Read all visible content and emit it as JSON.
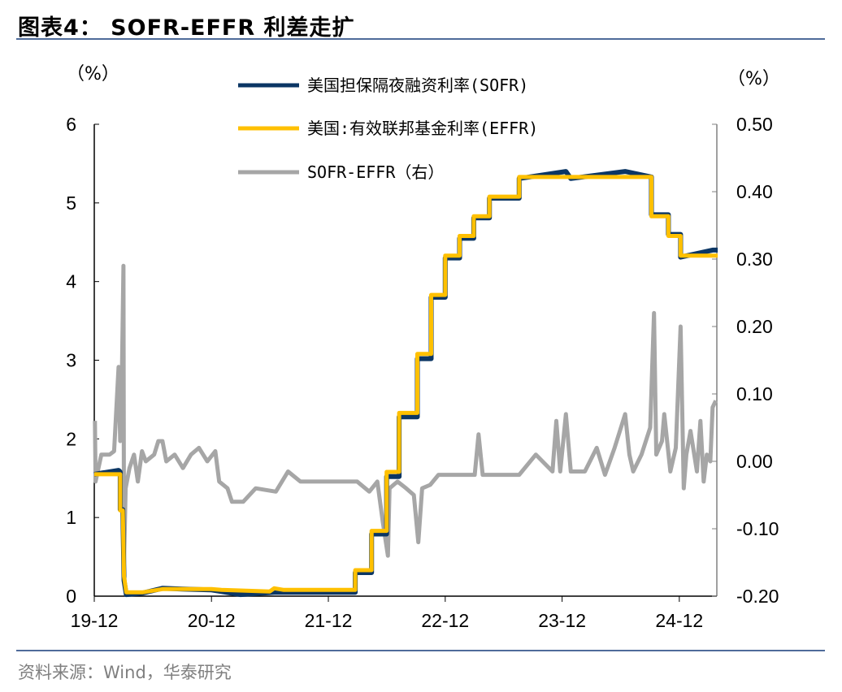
{
  "title": "图表4： SOFR-EFFR 利差走扩",
  "source": "资料来源：Wind，华泰研究",
  "colors": {
    "sofr": "#0b3664",
    "effr": "#ffc000",
    "spread": "#a6a6a6",
    "rule": "#4f6b9a",
    "axis_right": "#808080"
  },
  "chart_data": {
    "type": "line",
    "left_unit": "（%）",
    "right_unit": "（%）",
    "legend_position": "top-center",
    "grid": false,
    "left_axis": {
      "range": [
        0,
        6
      ],
      "ticks": [
        "0",
        "1",
        "2",
        "3",
        "4",
        "5",
        "6"
      ]
    },
    "right_axis": {
      "range": [
        -0.2,
        0.5
      ],
      "ticks": [
        "-0.20",
        "-0.10",
        "0.00",
        "0.10",
        "0.20",
        "0.30",
        "0.40",
        "0.50"
      ]
    },
    "x_axis": {
      "range": [
        "2019-12-01",
        "2025-03-31"
      ],
      "ticks": [
        {
          "label": "19-12",
          "date": "2019-12-01"
        },
        {
          "label": "20-12",
          "date": "2020-12-01"
        },
        {
          "label": "21-12",
          "date": "2021-12-01"
        },
        {
          "label": "22-12",
          "date": "2022-12-01"
        },
        {
          "label": "23-12",
          "date": "2023-12-01"
        },
        {
          "label": "24-12",
          "date": "2024-12-01"
        }
      ]
    },
    "series": [
      {
        "name": "美国担保隔夜融资利率(SOFR)",
        "axis": "left",
        "points": [
          [
            "2019-12-01",
            1.55
          ],
          [
            "2020-02-15",
            1.6
          ],
          [
            "2020-02-20",
            1.58
          ],
          [
            "2020-02-20",
            1.1
          ],
          [
            "2020-02-28",
            1.1
          ],
          [
            "2020-03-03",
            0.2
          ],
          [
            "2020-03-10",
            0.02
          ],
          [
            "2020-05-01",
            0.04
          ],
          [
            "2020-07-01",
            0.1
          ],
          [
            "2020-09-01",
            0.09
          ],
          [
            "2020-12-01",
            0.08
          ],
          [
            "2021-03-01",
            0.02
          ],
          [
            "2021-06-15",
            0.05
          ],
          [
            "2021-07-15",
            0.05
          ],
          [
            "2022-02-23",
            0.05
          ],
          [
            "2022-02-23",
            0.3
          ],
          [
            "2022-04-15",
            0.3
          ],
          [
            "2022-04-15",
            0.79
          ],
          [
            "2022-06-01",
            0.79
          ],
          [
            "2022-06-01",
            1.52
          ],
          [
            "2022-07-10",
            1.52
          ],
          [
            "2022-07-10",
            2.28
          ],
          [
            "2022-09-05",
            2.28
          ],
          [
            "2022-09-05",
            3.02
          ],
          [
            "2022-10-18",
            3.02
          ],
          [
            "2022-10-18",
            3.8
          ],
          [
            "2022-12-01",
            3.8
          ],
          [
            "2022-12-01",
            4.3
          ],
          [
            "2023-01-15",
            4.3
          ],
          [
            "2023-01-15",
            4.55
          ],
          [
            "2023-02-28",
            4.55
          ],
          [
            "2023-02-28",
            4.81
          ],
          [
            "2023-04-18",
            4.81
          ],
          [
            "2023-04-18",
            5.06
          ],
          [
            "2023-07-20",
            5.06
          ],
          [
            "2023-07-20",
            5.31
          ],
          [
            "2023-12-13",
            5.4
          ],
          [
            "2023-12-28",
            5.31
          ],
          [
            "2024-06-15",
            5.4
          ],
          [
            "2024-09-05",
            5.33
          ],
          [
            "2024-09-05",
            4.85
          ],
          [
            "2024-10-28",
            4.85
          ],
          [
            "2024-10-28",
            4.6
          ],
          [
            "2024-12-05",
            4.6
          ],
          [
            "2024-12-05",
            4.31
          ],
          [
            "2025-03-15",
            4.4
          ],
          [
            "2025-03-31",
            4.4
          ]
        ]
      },
      {
        "name": "美国:有效联邦基金利率(EFFR)",
        "axis": "left",
        "points": [
          [
            "2019-12-01",
            1.55
          ],
          [
            "2020-02-20",
            1.55
          ],
          [
            "2020-02-20",
            1.09
          ],
          [
            "2020-02-28",
            1.09
          ],
          [
            "2020-03-03",
            0.25
          ],
          [
            "2020-03-10",
            0.05
          ],
          [
            "2020-05-01",
            0.05
          ],
          [
            "2020-07-01",
            0.09
          ],
          [
            "2020-12-01",
            0.09
          ],
          [
            "2021-01-01",
            0.08
          ],
          [
            "2021-06-01",
            0.06
          ],
          [
            "2021-06-15",
            0.1
          ],
          [
            "2021-07-15",
            0.08
          ],
          [
            "2022-02-23",
            0.08
          ],
          [
            "2022-02-23",
            0.33
          ],
          [
            "2022-04-15",
            0.33
          ],
          [
            "2022-04-15",
            0.83
          ],
          [
            "2022-06-01",
            0.83
          ],
          [
            "2022-06-01",
            1.58
          ],
          [
            "2022-07-10",
            1.58
          ],
          [
            "2022-07-10",
            2.33
          ],
          [
            "2022-09-05",
            2.33
          ],
          [
            "2022-09-05",
            3.08
          ],
          [
            "2022-10-18",
            3.08
          ],
          [
            "2022-10-18",
            3.83
          ],
          [
            "2022-12-01",
            3.83
          ],
          [
            "2022-12-01",
            4.33
          ],
          [
            "2023-01-15",
            4.33
          ],
          [
            "2023-01-15",
            4.58
          ],
          [
            "2023-02-28",
            4.58
          ],
          [
            "2023-02-28",
            4.83
          ],
          [
            "2023-04-18",
            4.83
          ],
          [
            "2023-04-18",
            5.08
          ],
          [
            "2023-07-20",
            5.08
          ],
          [
            "2023-07-20",
            5.33
          ],
          [
            "2024-09-05",
            5.33
          ],
          [
            "2024-09-05",
            4.83
          ],
          [
            "2024-10-28",
            4.83
          ],
          [
            "2024-10-28",
            4.58
          ],
          [
            "2024-12-05",
            4.58
          ],
          [
            "2024-12-05",
            4.33
          ],
          [
            "2025-03-31",
            4.33
          ]
        ]
      },
      {
        "name": "SOFR-EFFR（右）",
        "axis": "right",
        "points": [
          [
            "2019-12-03",
            0.06
          ],
          [
            "2019-12-05",
            -0.03
          ],
          [
            "2019-12-23",
            0.01
          ],
          [
            "2020-01-18",
            0.01
          ],
          [
            "2020-02-01",
            0.015
          ],
          [
            "2020-02-15",
            0.14
          ],
          [
            "2020-02-20",
            0.03
          ],
          [
            "2020-02-25",
            0.12
          ],
          [
            "2020-03-01",
            0.29
          ],
          [
            "2020-03-03",
            -0.15
          ],
          [
            "2020-03-08",
            -0.04
          ],
          [
            "2020-03-20",
            -0.01
          ],
          [
            "2020-04-03",
            0.01
          ],
          [
            "2020-04-15",
            -0.03
          ],
          [
            "2020-04-28",
            0.015
          ],
          [
            "2020-05-10",
            0.0
          ],
          [
            "2020-06-05",
            0.01
          ],
          [
            "2020-06-18",
            0.03
          ],
          [
            "2020-07-01",
            0.03
          ],
          [
            "2020-07-13",
            0.0
          ],
          [
            "2020-08-08",
            0.01
          ],
          [
            "2020-09-03",
            -0.01
          ],
          [
            "2020-09-28",
            0.01
          ],
          [
            "2020-10-23",
            0.02
          ],
          [
            "2020-11-18",
            0.0
          ],
          [
            "2020-12-13",
            0.015
          ],
          [
            "2020-12-25",
            -0.03
          ],
          [
            "2021-01-20",
            -0.04
          ],
          [
            "2021-02-03",
            -0.06
          ],
          [
            "2021-03-10",
            -0.06
          ],
          [
            "2021-04-18",
            -0.04
          ],
          [
            "2021-06-20",
            -0.045
          ],
          [
            "2021-07-28",
            -0.015
          ],
          [
            "2021-09-05",
            -0.03
          ],
          [
            "2021-10-25",
            -0.03
          ],
          [
            "2022-01-10",
            -0.03
          ],
          [
            "2022-03-01",
            -0.03
          ],
          [
            "2022-04-08",
            -0.045
          ],
          [
            "2022-05-03",
            -0.03
          ],
          [
            "2022-05-20",
            -0.09
          ],
          [
            "2022-06-05",
            -0.14
          ],
          [
            "2022-06-10",
            -0.04
          ],
          [
            "2022-07-05",
            -0.03
          ],
          [
            "2022-08-01",
            -0.04
          ],
          [
            "2022-08-25",
            -0.05
          ],
          [
            "2022-09-08",
            -0.12
          ],
          [
            "2022-09-20",
            -0.04
          ],
          [
            "2022-10-15",
            -0.035
          ],
          [
            "2022-11-10",
            -0.02
          ],
          [
            "2023-01-01",
            -0.02
          ],
          [
            "2023-03-03",
            -0.02
          ],
          [
            "2023-03-15",
            0.04
          ],
          [
            "2023-03-28",
            -0.02
          ],
          [
            "2023-07-20",
            -0.02
          ],
          [
            "2023-09-10",
            0.01
          ],
          [
            "2023-11-01",
            -0.015
          ],
          [
            "2023-11-13",
            0.06
          ],
          [
            "2023-11-25",
            -0.015
          ],
          [
            "2023-12-13",
            0.07
          ],
          [
            "2023-12-28",
            -0.015
          ],
          [
            "2024-02-10",
            -0.015
          ],
          [
            "2024-03-18",
            0.02
          ],
          [
            "2024-04-13",
            -0.02
          ],
          [
            "2024-05-13",
            0.02
          ],
          [
            "2024-06-15",
            0.07
          ],
          [
            "2024-06-28",
            0.01
          ],
          [
            "2024-07-10",
            -0.015
          ],
          [
            "2024-08-05",
            0.01
          ],
          [
            "2024-09-01",
            0.05
          ],
          [
            "2024-09-13",
            0.22
          ],
          [
            "2024-09-20",
            0.01
          ],
          [
            "2024-10-08",
            0.03
          ],
          [
            "2024-10-15",
            0.07
          ],
          [
            "2024-11-03",
            -0.015
          ],
          [
            "2024-11-20",
            0.02
          ],
          [
            "2024-12-05",
            0.2
          ],
          [
            "2024-12-15",
            -0.04
          ],
          [
            "2024-12-23",
            0.01
          ],
          [
            "2025-01-05",
            0.045
          ],
          [
            "2025-01-25",
            -0.015
          ],
          [
            "2025-02-05",
            0.06
          ],
          [
            "2025-02-15",
            -0.03
          ],
          [
            "2025-02-25",
            0.01
          ],
          [
            "2025-03-08",
            0.0
          ],
          [
            "2025-03-15",
            0.08
          ],
          [
            "2025-03-25",
            0.09
          ]
        ]
      }
    ]
  }
}
